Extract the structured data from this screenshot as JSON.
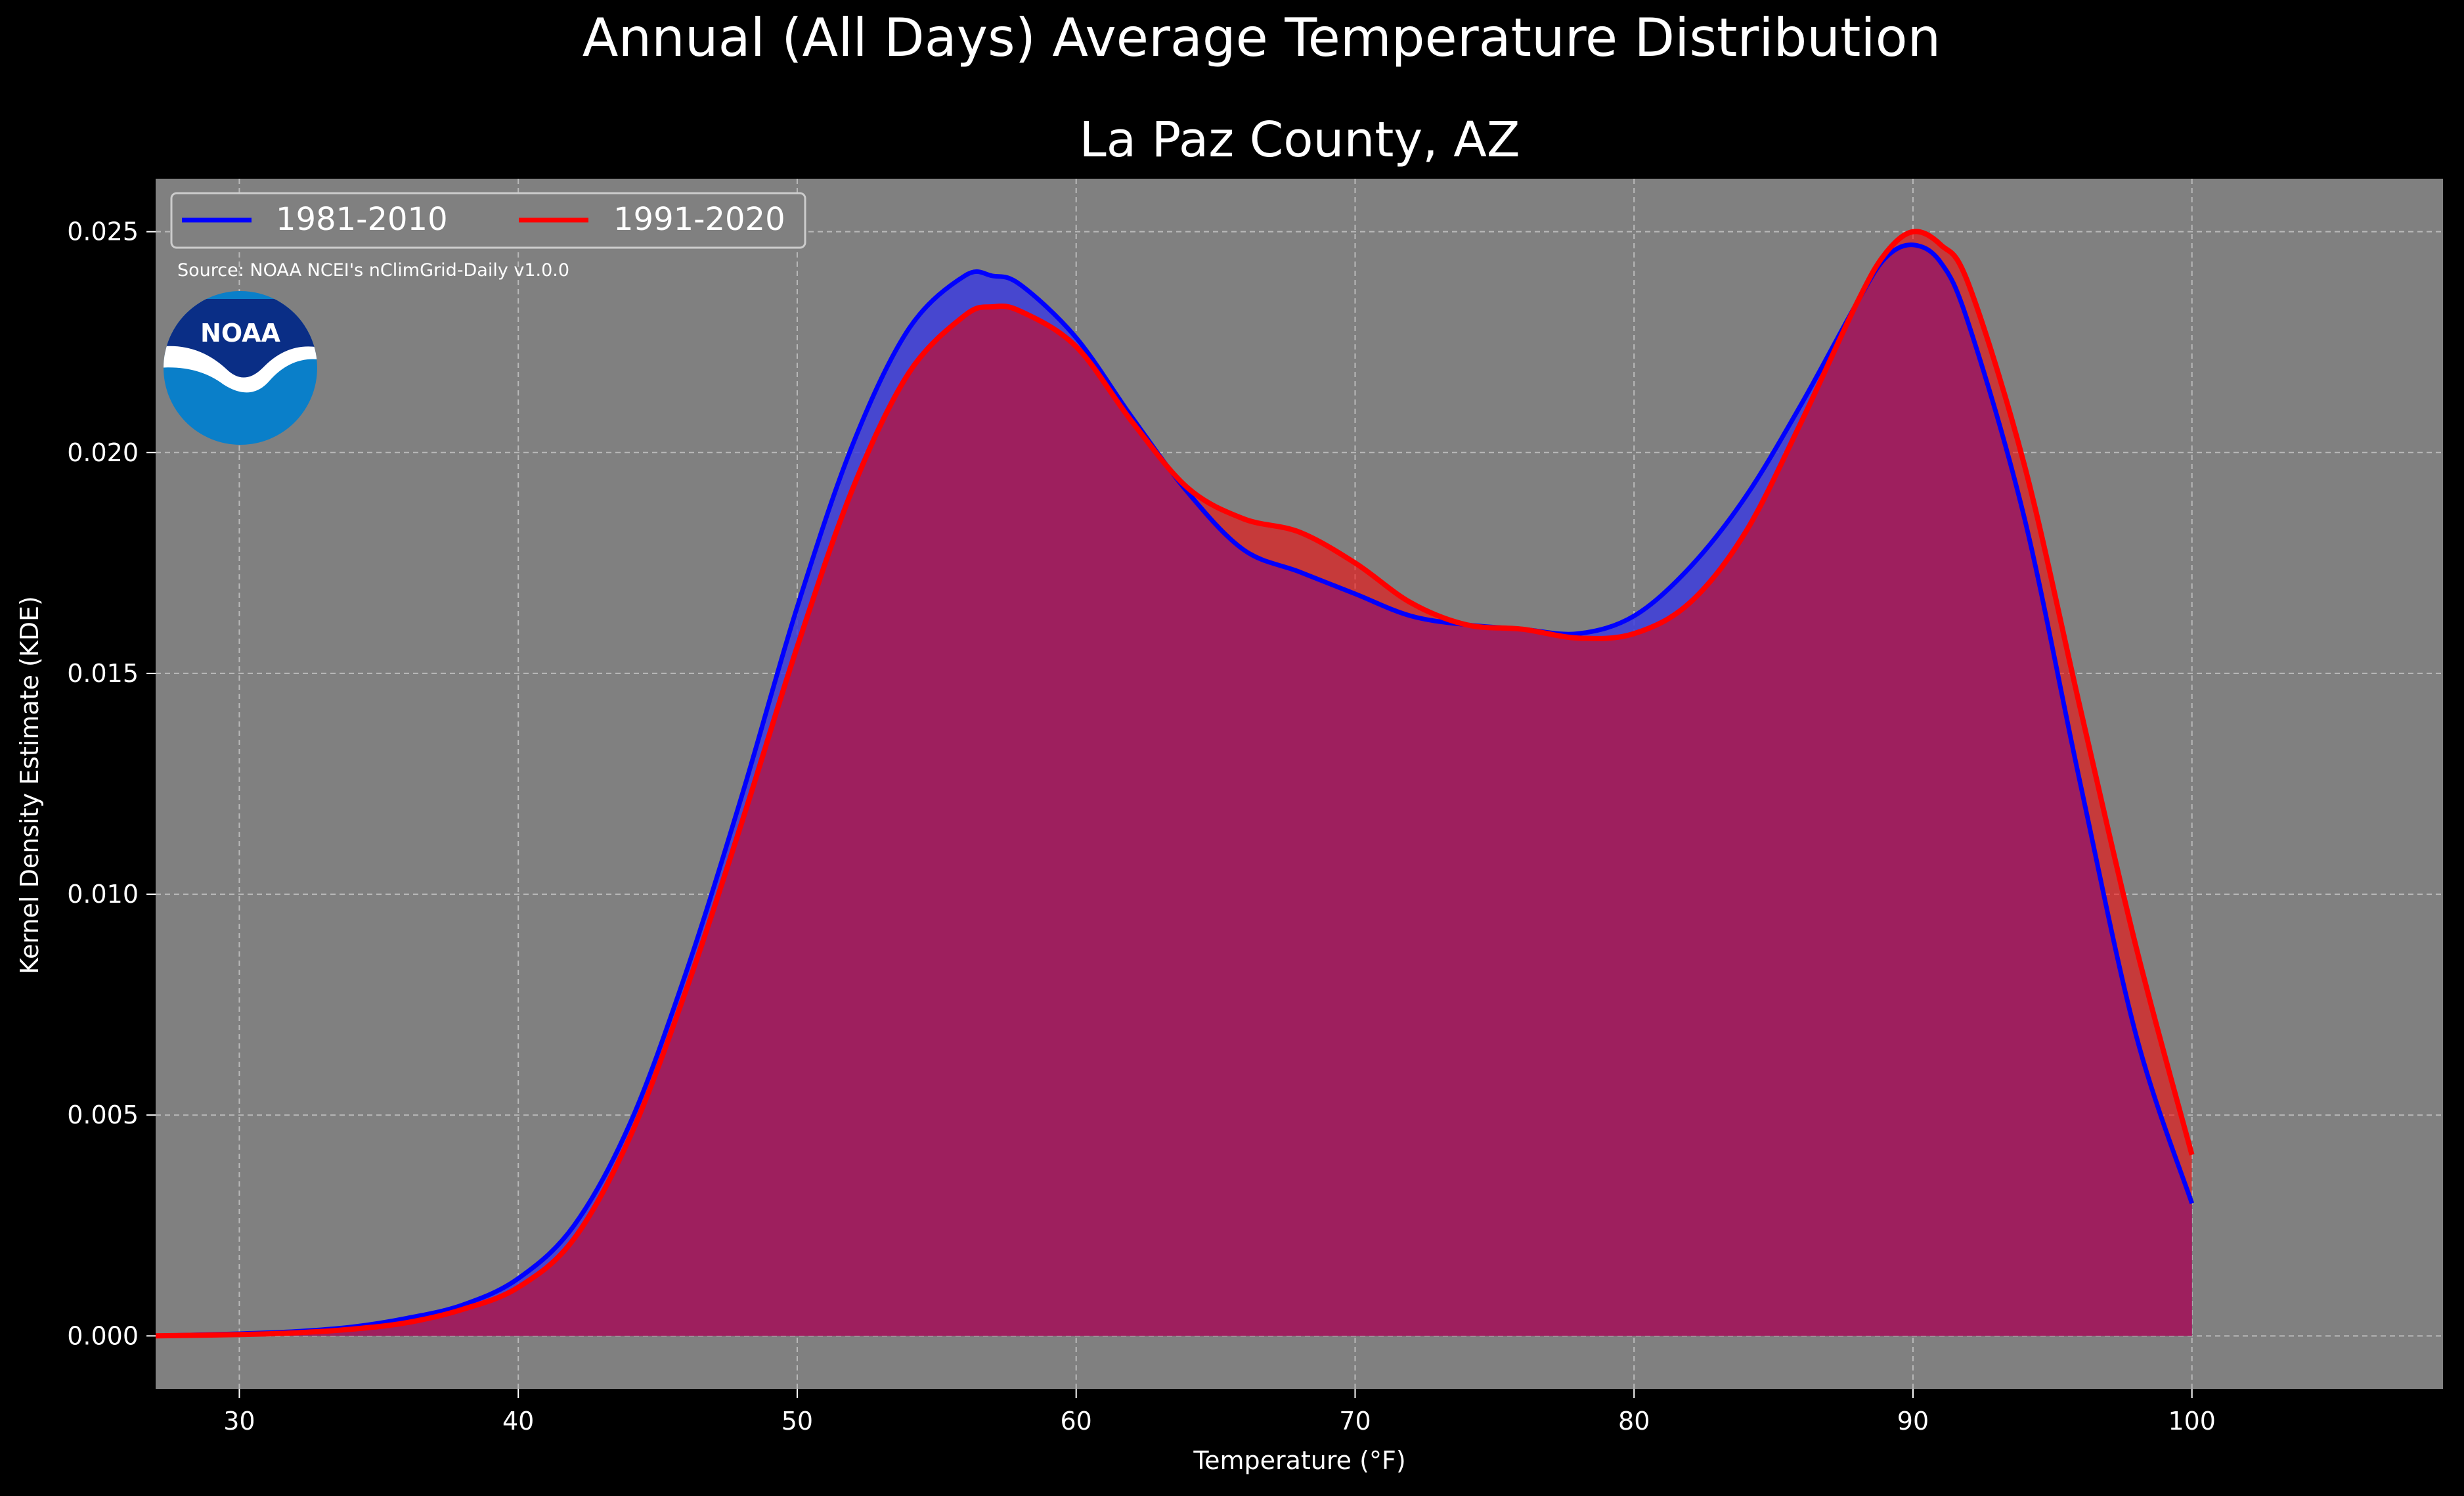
{
  "chart_data": {
    "type": "area",
    "title": "Annual (All Days) Average Temperature Distribution",
    "subtitle": "La Paz County, AZ",
    "xlabel": "Temperature (°F)",
    "ylabel": "Kernel Density Estimate (KDE)",
    "source": "Source: NOAA NCEI's nClimGrid-Daily v1.0.0",
    "logo_text": "NOAA",
    "xlim": [
      27,
      109
    ],
    "ylim": [
      -0.0012,
      0.0262
    ],
    "xticks": [
      30,
      40,
      50,
      60,
      70,
      80,
      90,
      100
    ],
    "xtick_labels": [
      "30",
      "40",
      "50",
      "60",
      "70",
      "80",
      "90",
      "100"
    ],
    "yticks": [
      0.0,
      0.005,
      0.01,
      0.015,
      0.02,
      0.025
    ],
    "ytick_labels": [
      "0.000",
      "0.005",
      "0.010",
      "0.015",
      "0.020",
      "0.025"
    ],
    "grid": true,
    "legend_position": "top-left",
    "x": [
      27,
      30,
      32,
      34,
      36,
      38,
      40,
      42,
      44,
      46,
      48,
      50,
      52,
      54,
      56,
      57,
      58,
      60,
      62,
      64,
      66,
      68,
      70,
      72,
      74,
      76,
      78,
      80,
      82,
      84,
      86,
      88,
      89,
      90,
      91,
      92,
      94,
      96,
      98,
      100
    ],
    "series": [
      {
        "name": "1981-2010",
        "color": "#0000ff",
        "fill": "#3d3ddd",
        "values": [
          0.0,
          5e-05,
          0.0001,
          0.0002,
          0.0004,
          0.0007,
          0.0013,
          0.0025,
          0.0048,
          0.0082,
          0.0122,
          0.0165,
          0.0202,
          0.0228,
          0.024,
          0.024,
          0.0238,
          0.0226,
          0.0208,
          0.0191,
          0.0178,
          0.0173,
          0.0168,
          0.0163,
          0.0161,
          0.016,
          0.0159,
          0.0163,
          0.0174,
          0.019,
          0.0211,
          0.0234,
          0.0244,
          0.0247,
          0.0243,
          0.0229,
          0.0185,
          0.0125,
          0.0068,
          0.003
        ]
      },
      {
        "name": "1991-2020",
        "color": "#ff0000",
        "fill": "#ff0000",
        "values": [
          0.0,
          3e-05,
          7e-05,
          0.00015,
          0.0003,
          0.0006,
          0.0011,
          0.0022,
          0.0045,
          0.0078,
          0.0116,
          0.0156,
          0.0192,
          0.0218,
          0.0231,
          0.0233,
          0.0232,
          0.0224,
          0.0207,
          0.0192,
          0.0185,
          0.0182,
          0.0175,
          0.0166,
          0.0161,
          0.016,
          0.0158,
          0.0159,
          0.0166,
          0.0182,
          0.0207,
          0.0234,
          0.0245,
          0.025,
          0.0247,
          0.0238,
          0.0197,
          0.0142,
          0.0088,
          0.0041
        ]
      }
    ],
    "overlap_color": "#9e1f5e",
    "plot_background": "#808080",
    "figure_background": "#000000"
  }
}
